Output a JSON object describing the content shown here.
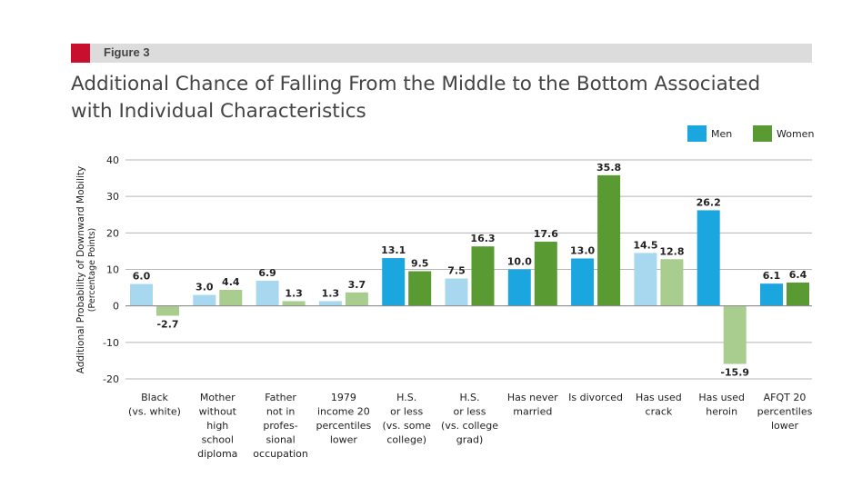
{
  "figure_label": "Figure 3",
  "title_line1": "Additional Chance of Falling From the Middle to the Bottom Associated",
  "title_line2": "with Individual Characteristics",
  "colors": {
    "accent_square": "#c8102e",
    "men_significant": "#1ba6e0",
    "men_insignificant": "#a8d8f0",
    "women_significant": "#5a9a32",
    "women_insignificant": "#a9cd8f"
  },
  "chart_data": {
    "type": "bar",
    "ylabel_line1": "Additional Probability of Downward Mobility",
    "ylabel_line2": "(Percentage Points)",
    "ylim": [
      -20,
      40
    ],
    "yticks": [
      40,
      30,
      20,
      10,
      0,
      -10,
      -20
    ],
    "grid": true,
    "legend": {
      "placement": "top-right",
      "entries": [
        "Men",
        "Women"
      ]
    },
    "categories": [
      [
        "Black",
        "(vs. white)"
      ],
      [
        "Mother",
        "without",
        "high",
        "school",
        "diploma"
      ],
      [
        "Father",
        "not in",
        "profes-",
        "sional",
        "occupation"
      ],
      [
        "1979",
        "income 20",
        "percentiles",
        "lower"
      ],
      [
        "H.S.",
        "or less",
        "(vs. some",
        "college)"
      ],
      [
        "H.S.",
        "or less",
        "(vs. college",
        "grad)"
      ],
      [
        "Has never",
        "married"
      ],
      [
        "Is divorced"
      ],
      [
        "Has used",
        "crack"
      ],
      [
        "Has used",
        "heroin"
      ],
      [
        "AFQT 20",
        "percentiles",
        "lower"
      ]
    ],
    "series": [
      {
        "name": "Men",
        "values": [
          6.0,
          3.0,
          6.9,
          1.3,
          13.1,
          7.5,
          10.0,
          13.0,
          14.5,
          26.2,
          6.1
        ],
        "labels": [
          "6.0",
          "3.0",
          "6.9",
          "1.3",
          "13.1",
          "7.5",
          "10.0",
          "13.0",
          "14.5",
          "26.2",
          "6.1"
        ],
        "significant": [
          false,
          false,
          false,
          false,
          true,
          false,
          true,
          true,
          false,
          true,
          true
        ]
      },
      {
        "name": "Women",
        "values": [
          -2.7,
          4.4,
          1.3,
          3.7,
          9.5,
          16.3,
          17.6,
          35.8,
          12.8,
          -15.9,
          6.4
        ],
        "labels": [
          "-2.7",
          "4.4",
          "1.3",
          "3.7",
          "9.5",
          "16.3",
          "17.6",
          "35.8",
          "12.8",
          "-15.9",
          "6.4"
        ],
        "significant": [
          false,
          false,
          false,
          false,
          true,
          true,
          true,
          true,
          false,
          false,
          true
        ]
      }
    ]
  }
}
